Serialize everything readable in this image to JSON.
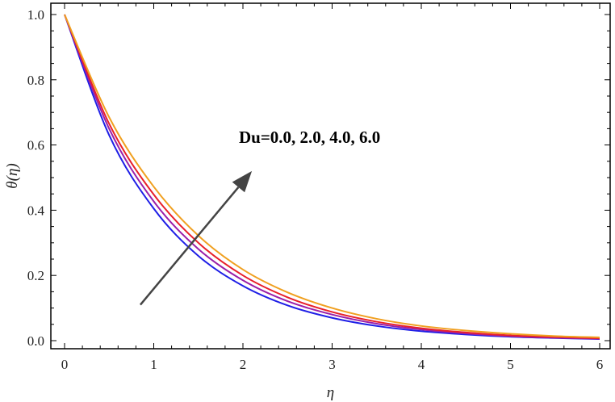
{
  "chart_data": {
    "type": "line",
    "title": "",
    "xlabel": "η",
    "ylabel": "θ(η)",
    "xlim": [
      0,
      6
    ],
    "ylim": [
      0,
      1.0
    ],
    "xticks": [
      0,
      1,
      2,
      3,
      4,
      5,
      6
    ],
    "xtick_labels": [
      "0",
      "1",
      "2",
      "3",
      "4",
      "5",
      "6"
    ],
    "yticks": [
      0.0,
      0.2,
      0.4,
      0.6,
      0.8,
      1.0
    ],
    "ytick_labels": [
      "0.0",
      "0.2",
      "0.4",
      "0.6",
      "0.8",
      "1.0"
    ],
    "grid": false,
    "x": [
      0,
      0.5,
      1,
      1.5,
      2,
      2.5,
      3,
      3.5,
      4,
      4.5,
      5,
      5.5,
      6
    ],
    "series": [
      {
        "color": "#1f1fe6",
        "values": [
          1.0,
          0.63,
          0.405,
          0.26,
          0.168,
          0.108,
          0.07,
          0.045,
          0.029,
          0.019,
          0.012,
          0.008,
          0.005
        ]
      },
      {
        "color": "#9b1fa8",
        "values": [
          1.0,
          0.65,
          0.427,
          0.281,
          0.185,
          0.121,
          0.08,
          0.052,
          0.034,
          0.022,
          0.014,
          0.009,
          0.006
        ]
      },
      {
        "color": "#e8202a",
        "values": [
          1.0,
          0.665,
          0.448,
          0.3,
          0.2,
          0.133,
          0.088,
          0.058,
          0.038,
          0.025,
          0.016,
          0.011,
          0.007
        ]
      },
      {
        "color": "#f0a020",
        "values": [
          1.0,
          0.685,
          0.472,
          0.322,
          0.218,
          0.148,
          0.1,
          0.067,
          0.045,
          0.031,
          0.021,
          0.014,
          0.01
        ]
      }
    ],
    "annotation": {
      "text": "Du=0.0, 2.0, 4.0, 6.0",
      "arrow_from": [
        0.85,
        0.11
      ],
      "arrow_to": [
        2.1,
        0.52
      ],
      "arrow_color": "#444444"
    }
  }
}
